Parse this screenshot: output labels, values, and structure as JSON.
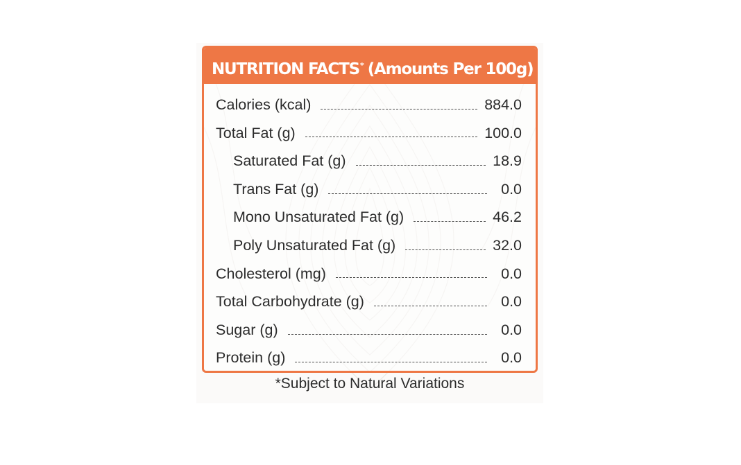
{
  "header": {
    "title_main": "NUTRITION FACTS",
    "title_mark": "*",
    "title_suffix": "(Amounts Per 100g)"
  },
  "rows": [
    {
      "label": "Calories (kcal)",
      "value": "884.0",
      "indent": false
    },
    {
      "label": "Total Fat (g)",
      "value": "100.0",
      "indent": false
    },
    {
      "label": "Saturated Fat (g)",
      "value": "18.9",
      "indent": true
    },
    {
      "label": "Trans Fat (g)",
      "value": "0.0",
      "indent": true
    },
    {
      "label": "Mono Unsaturated Fat (g)",
      "value": "46.2",
      "indent": true
    },
    {
      "label": "Poly Unsaturated Fat (g)",
      "value": "32.0",
      "indent": true
    },
    {
      "label": "Cholesterol (mg)",
      "value": "0.0",
      "indent": false
    },
    {
      "label": "Total Carbohydrate (g)",
      "value": "0.0",
      "indent": false
    },
    {
      "label": "Sugar (g)",
      "value": "0.0",
      "indent": false
    },
    {
      "label": "Protein (g)",
      "value": "0.0",
      "indent": false
    }
  ],
  "footnote": "*Subject to Natural Variations",
  "colors": {
    "accent": "#ee7745",
    "text": "#2b2b2b"
  }
}
